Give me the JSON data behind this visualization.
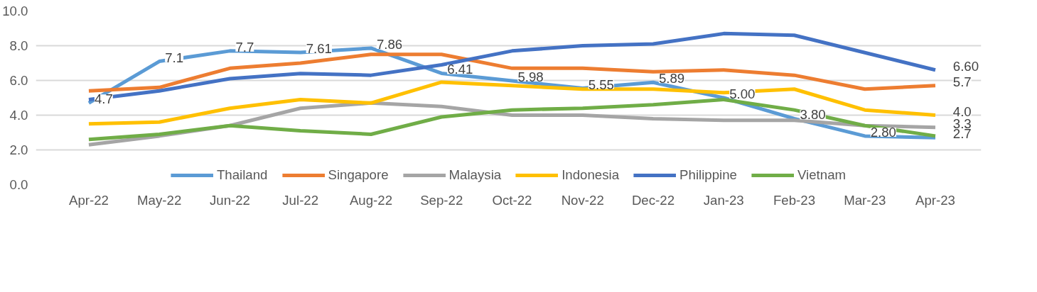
{
  "chart_data": {
    "type": "line",
    "categories": [
      "Apr-22",
      "May-22",
      "Jun-22",
      "Jul-22",
      "Aug-22",
      "Sep-22",
      "Oct-22",
      "Nov-22",
      "Dec-22",
      "Jan-23",
      "Feb-23",
      "Mar-23",
      "Apr-23"
    ],
    "series": [
      {
        "name": "Thailand",
        "color": "#5b9bd5",
        "values": [
          4.7,
          7.1,
          7.7,
          7.61,
          7.86,
          6.41,
          5.98,
          5.55,
          5.89,
          5.0,
          3.8,
          2.8,
          2.7
        ],
        "value_labels": [
          "4.7",
          "7.1",
          "7.7",
          "7.61",
          "7.86",
          "6.41",
          "5.98",
          "5.55",
          "5.89",
          "5.00",
          "3.80",
          "2.80",
          "2.7"
        ]
      },
      {
        "name": "Singapore",
        "color": "#ed7d31",
        "values": [
          5.4,
          5.6,
          6.7,
          7.0,
          7.5,
          7.5,
          6.7,
          6.7,
          6.5,
          6.6,
          6.3,
          5.5,
          5.7
        ],
        "value_labels": [
          null,
          null,
          null,
          null,
          null,
          null,
          null,
          null,
          null,
          null,
          null,
          null,
          "5.7"
        ]
      },
      {
        "name": "Malaysia",
        "color": "#a5a5a5",
        "values": [
          2.3,
          2.8,
          3.4,
          4.4,
          4.7,
          4.5,
          4.0,
          4.0,
          3.8,
          3.7,
          3.7,
          3.4,
          3.3
        ],
        "value_labels": [
          null,
          null,
          null,
          null,
          null,
          null,
          null,
          null,
          null,
          null,
          null,
          null,
          "3.3"
        ]
      },
      {
        "name": "Indonesia",
        "color": "#ffc000",
        "values": [
          3.5,
          3.6,
          4.4,
          4.9,
          4.7,
          5.9,
          5.7,
          5.5,
          5.5,
          5.3,
          5.5,
          4.3,
          4.0
        ],
        "value_labels": [
          null,
          null,
          null,
          null,
          null,
          null,
          null,
          null,
          null,
          null,
          null,
          null,
          "4.0"
        ]
      },
      {
        "name": "Philippine",
        "color": "#4472c4",
        "values": [
          4.9,
          5.4,
          6.1,
          6.4,
          6.3,
          6.9,
          7.7,
          8.0,
          8.1,
          8.7,
          8.6,
          7.6,
          6.6
        ],
        "value_labels": [
          null,
          null,
          null,
          null,
          null,
          null,
          null,
          null,
          null,
          null,
          null,
          null,
          "6.60"
        ]
      },
      {
        "name": "Vietnam",
        "color": "#70ad47",
        "values": [
          2.6,
          2.9,
          3.4,
          3.1,
          2.9,
          3.9,
          4.3,
          4.4,
          4.6,
          4.9,
          4.3,
          3.4,
          2.8
        ]
      }
    ],
    "ylim": [
      0,
      10
    ],
    "yticks": [
      {
        "value": 0,
        "label": "0.0"
      },
      {
        "value": 2,
        "label": "2.0"
      },
      {
        "value": 4,
        "label": "4.0"
      },
      {
        "value": 6,
        "label": "6.0"
      },
      {
        "value": 8,
        "label": "8.0"
      },
      {
        "value": 10,
        "label": "10.0"
      }
    ],
    "grid": "y",
    "legend": "bottom",
    "marker": "none",
    "line_style": "solid"
  }
}
